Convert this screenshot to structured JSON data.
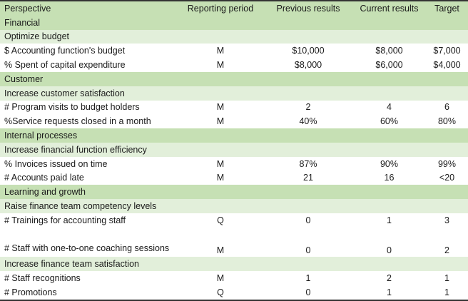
{
  "headers": [
    "Perspective",
    "Reporting period",
    "Previous results",
    "Current results",
    "Target"
  ],
  "sections": [
    {
      "perspective": "Financial",
      "objectives": [
        {
          "name": "Optimize budget",
          "measures": [
            {
              "measure": "$ Accounting function's budget",
              "period": "M",
              "previous": "$10,000",
              "current": "$8,000",
              "target": "$7,000"
            },
            {
              "measure": "% Spent of capital expenditure",
              "period": "M",
              "previous": "$8,000",
              "current": "$6,000",
              "target": "$4,000"
            }
          ]
        }
      ]
    },
    {
      "perspective": "Customer",
      "objectives": [
        {
          "name": "Increase customer satisfaction",
          "measures": [
            {
              "measure": "# Program visits to budget holders",
              "period": "M",
              "previous": "2",
              "current": "4",
              "target": "6"
            },
            {
              "measure": "%Service requests closed in a month",
              "period": "M",
              "previous": "40%",
              "current": "60%",
              "target": "80%"
            }
          ]
        }
      ]
    },
    {
      "perspective": "Internal processes",
      "objectives": [
        {
          "name": "Increase financial function efficiency",
          "measures": [
            {
              "measure": "% Invoices issued on time",
              "period": "M",
              "previous": "87%",
              "current": "90%",
              "target": "99%"
            },
            {
              "measure": "# Accounts paid late",
              "period": "M",
              "previous": "21",
              "current": "16",
              "target": "<20"
            }
          ]
        }
      ]
    },
    {
      "perspective": "Learning and growth",
      "objectives": [
        {
          "name": "Raise finance team competency levels",
          "measures": [
            {
              "measure": "# Trainings for accounting staff",
              "period": "Q",
              "previous": "0",
              "current": "1",
              "target": "3"
            },
            {
              "measure": "# Staff with one-to-one coaching sessions",
              "period": "M",
              "previous": "0",
              "current": "0",
              "target": "2"
            }
          ]
        },
        {
          "name": "Increase finance team satisfaction",
          "measures": [
            {
              "measure": "# Staff recognitions",
              "period": "M",
              "previous": "1",
              "current": "2",
              "target": "1"
            },
            {
              "measure": "# Promotions",
              "period": "Q",
              "previous": "0",
              "current": "1",
              "target": "1"
            }
          ]
        }
      ]
    }
  ]
}
